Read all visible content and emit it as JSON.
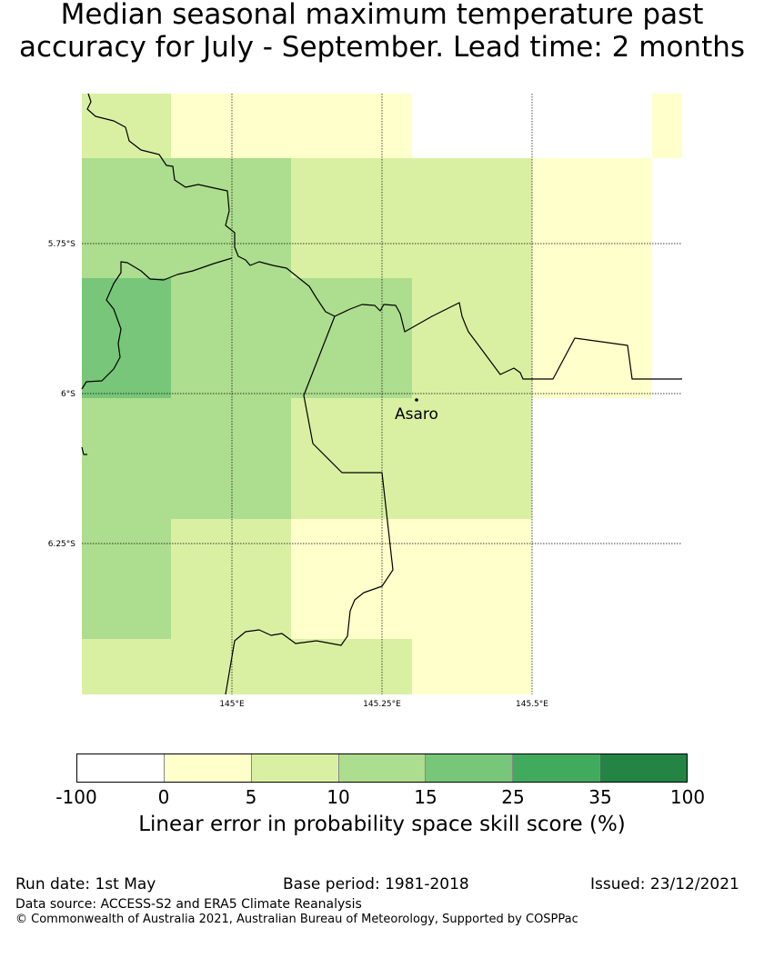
{
  "title": {
    "line1": "Median seasonal maximum temperature past",
    "line2": "accuracy for July - September. Lead time: 2 months"
  },
  "map": {
    "lat_ticks": [
      "5.75°S",
      "6°S",
      "6.25°S"
    ],
    "lon_ticks": [
      "145°E",
      "145.25°E",
      "145.5°E"
    ],
    "place_name": "Asaro"
  },
  "colorbar": {
    "tick_labels": [
      "-100",
      "0",
      "5",
      "10",
      "15",
      "25",
      "35",
      "100"
    ],
    "colors": [
      "#ffffff",
      "#ffffcc",
      "#d9f0a3",
      "#addd8e",
      "#78c679",
      "#41ab5d",
      "#238443"
    ],
    "label": "Linear error in probability space skill score (%)"
  },
  "footer": {
    "run_date": "Run date: 1st May",
    "base_period": "Base period: 1981-2018",
    "issued": "Issued: 23/12/2021",
    "data_source": "Data source: ACCESS-S2 and ERA5 Climate Reanalysis",
    "copyright": "© Commonwealth of Australia 2021, Australian Bureau of Meteorology, Supported by COSPPac"
  }
}
